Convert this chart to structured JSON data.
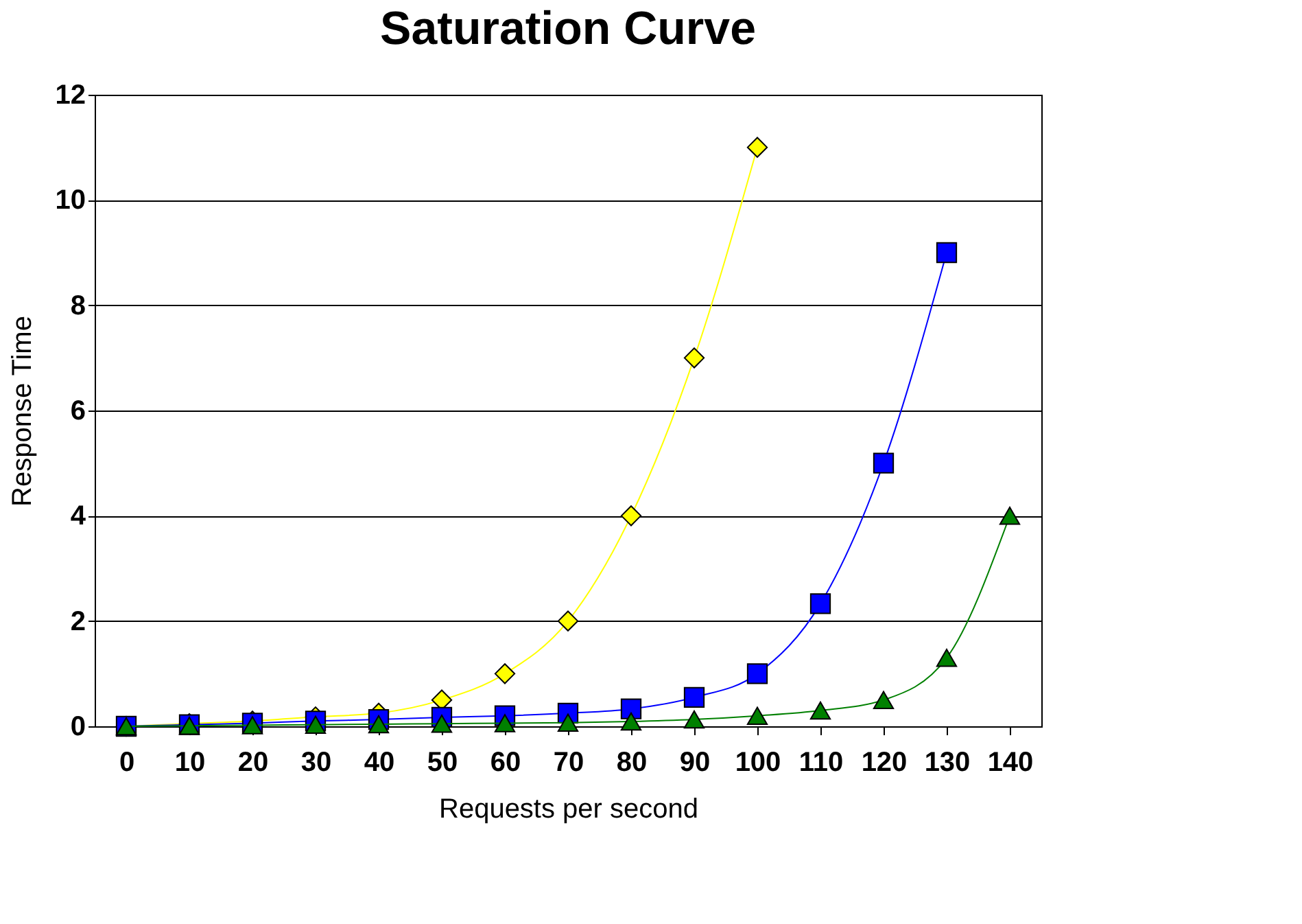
{
  "chart_data": {
    "type": "line",
    "title": "Saturation Curve",
    "xlabel": "Requests per second",
    "ylabel": "Response Time",
    "categories": [
      "0",
      "10",
      "20",
      "30",
      "40",
      "50",
      "60",
      "70",
      "80",
      "90",
      "100",
      "110",
      "120",
      "130",
      "140"
    ],
    "series": [
      {
        "color": "#ffff00",
        "marker": "diamond",
        "values": [
          0,
          0.05,
          0.1,
          0.18,
          0.25,
          0.5,
          1,
          2,
          4,
          7,
          11,
          null,
          null,
          null,
          null
        ]
      },
      {
        "color": "#0000ff",
        "marker": "square",
        "values": [
          0,
          0.03,
          0.06,
          0.1,
          0.13,
          0.17,
          0.2,
          0.25,
          0.33,
          0.55,
          1,
          2.33,
          5,
          9,
          null
        ]
      },
      {
        "color": "#008000",
        "marker": "triangle",
        "values": [
          0,
          0.01,
          0.02,
          0.03,
          0.04,
          0.05,
          0.06,
          0.07,
          0.09,
          0.13,
          0.2,
          0.3,
          0.5,
          1.3,
          4
        ]
      }
    ],
    "ylim": [
      0,
      12
    ],
    "yticks": [
      0,
      2,
      4,
      6,
      8,
      10,
      12
    ],
    "grid": "y",
    "line_style": "solid"
  }
}
